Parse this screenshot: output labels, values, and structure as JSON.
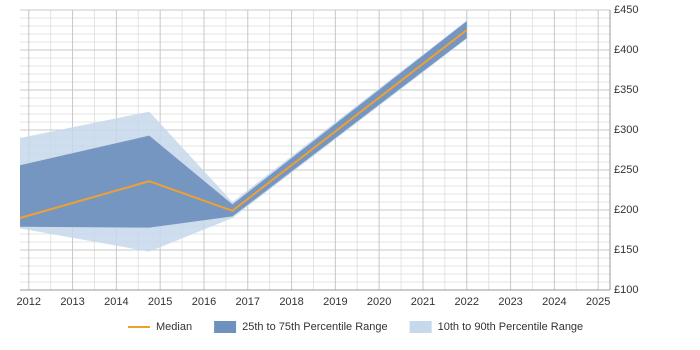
{
  "chart_data": {
    "type": "line",
    "x": [
      2011.8,
      2014.75,
      2016.65,
      2022
    ],
    "series": [
      {
        "name": "Median",
        "color": "#f0a030",
        "values": [
          190,
          236,
          199,
          425
        ]
      }
    ],
    "bands": [
      {
        "name": "10th to 90th Percentile Range",
        "color": "#c6d8ec",
        "lower": [
          177,
          148,
          190,
          414
        ],
        "upper": [
          290,
          323,
          210,
          437
        ]
      },
      {
        "name": "25th to 75th Percentile Range",
        "color": "#6f91be",
        "lower": [
          179,
          178,
          192,
          415
        ],
        "upper": [
          256,
          293,
          207,
          436
        ]
      }
    ],
    "xlim": [
      2011.8,
      2025.27
    ],
    "xticks": [
      2012,
      2013,
      2014,
      2015,
      2016,
      2017,
      2018,
      2019,
      2020,
      2021,
      2022,
      2023,
      2024,
      2025
    ],
    "ylim": [
      100,
      450
    ],
    "yticks": [
      {
        "value": 100,
        "label": "£100"
      },
      {
        "value": 150,
        "label": "£150"
      },
      {
        "value": 200,
        "label": "£200"
      },
      {
        "value": 250,
        "label": "£250"
      },
      {
        "value": 300,
        "label": "£300"
      },
      {
        "value": 350,
        "label": "£350"
      },
      {
        "value": 400,
        "label": "£400"
      },
      {
        "value": 450,
        "label": "£450"
      }
    ],
    "grid": true
  }
}
